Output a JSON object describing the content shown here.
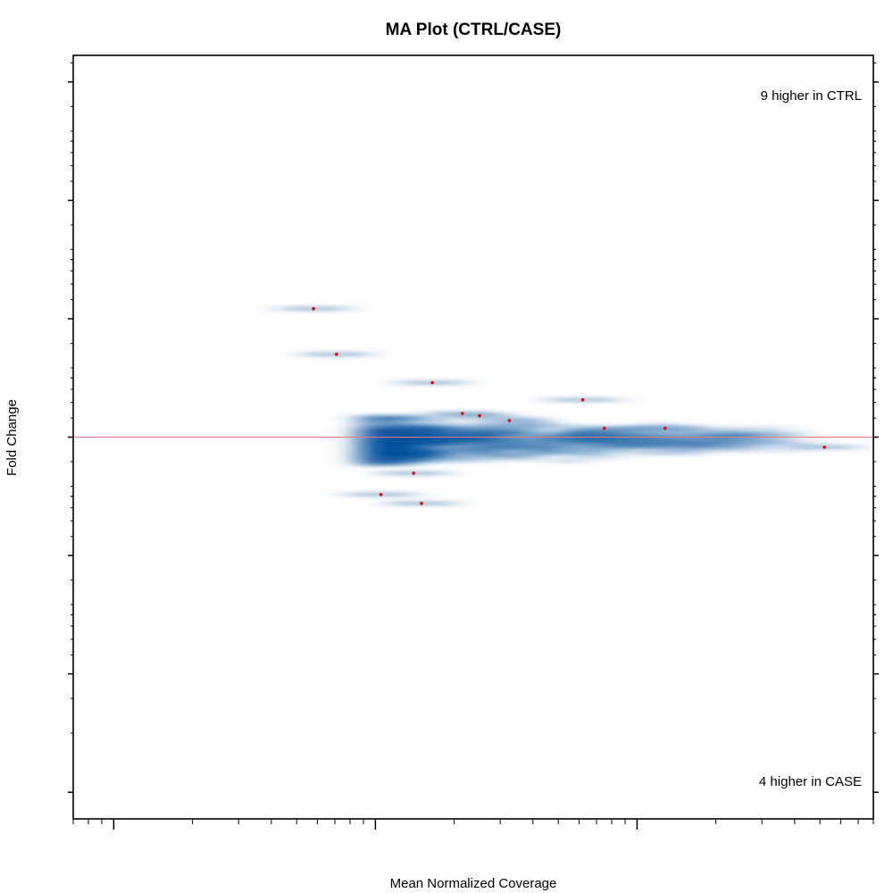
{
  "chart_data": {
    "type": "scatter",
    "title": "MA Plot (CTRL/CASE)",
    "xlabel": "Mean Normalized Coverage",
    "ylabel": "Fold Change",
    "x_scale": "log10",
    "y_scale": "log2",
    "xlim": [
      0.7,
      800
    ],
    "ylim_log2": [
      -6.45,
      6.45
    ],
    "x_major_ticks": [
      1,
      10,
      100
    ],
    "y_major_ticks_log2": [
      -6,
      -4,
      -2,
      0,
      2,
      4,
      6
    ],
    "tick_labels_visible": false,
    "reference_line_log2": 0,
    "reference_line_color": "#e87878",
    "density_color": "#08519c",
    "point_color": "#e8000b",
    "density_region": {
      "x_range": [
        5,
        350
      ],
      "log2fc_range": [
        -1.2,
        0.6
      ]
    },
    "points": [
      {
        "x": 5.8,
        "log2fc": 2.17
      },
      {
        "x": 7.1,
        "log2fc": 1.4
      },
      {
        "x": 16.5,
        "log2fc": 0.92
      },
      {
        "x": 21.5,
        "log2fc": 0.4
      },
      {
        "x": 25.0,
        "log2fc": 0.36
      },
      {
        "x": 32.5,
        "log2fc": 0.28
      },
      {
        "x": 62.0,
        "log2fc": 0.63
      },
      {
        "x": 75.0,
        "log2fc": 0.15
      },
      {
        "x": 128.0,
        "log2fc": 0.15
      },
      {
        "x": 14.0,
        "log2fc": -0.61
      },
      {
        "x": 10.5,
        "log2fc": -0.97
      },
      {
        "x": 15.0,
        "log2fc": -1.12
      },
      {
        "x": 520.0,
        "log2fc": -0.17
      }
    ],
    "annotations": {
      "top_right": "9 higher in CTRL",
      "bottom_right": "4 higher in CASE"
    }
  }
}
